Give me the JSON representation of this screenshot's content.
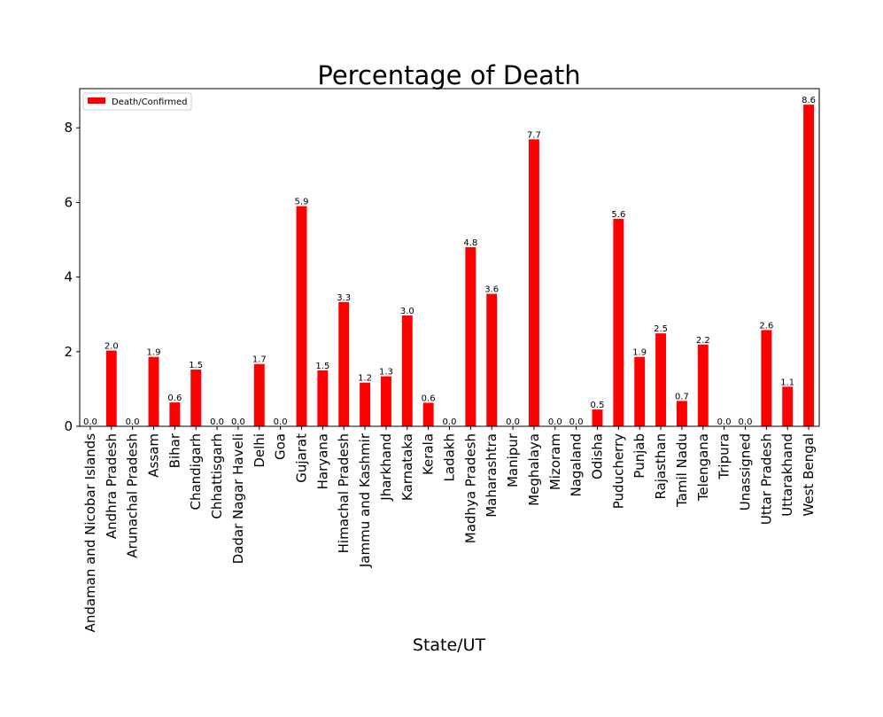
{
  "chart_data": {
    "type": "bar",
    "title": "Percentage of Death",
    "xlabel": "State/UT",
    "ylabel": "",
    "ylim": [
      0,
      9.05
    ],
    "yticks": [
      0,
      2,
      4,
      6,
      8
    ],
    "grid": false,
    "legend_position": "top-left",
    "bar_color": "#ff0000",
    "categories": [
      "Andaman and Nicobar Islands",
      "Andhra Pradesh",
      "Arunachal Pradesh",
      "Assam",
      "Bihar",
      "Chandigarh",
      "Chhattisgarh",
      "Dadar Nagar Haveli",
      "Delhi",
      "Goa",
      "Gujarat",
      "Haryana",
      "Himachal Pradesh",
      "Jammu and Kashmir",
      "Jharkhand",
      "Karnataka",
      "Kerala",
      "Ladakh",
      "Madhya Pradesh",
      "Maharashtra",
      "Manipur",
      "Meghalaya",
      "Mizoram",
      "Nagaland",
      "Odisha",
      "Puducherry",
      "Punjab",
      "Rajasthan",
      "Tamil Nadu",
      "Telengana",
      "Tripura",
      "Unassigned",
      "Uttar Pradesh",
      "Uttarakhand",
      "West Bengal"
    ],
    "series": [
      {
        "name": "Death/Confirmed",
        "values": [
          0.0,
          2.03,
          0.0,
          1.86,
          0.64,
          1.52,
          0.0,
          0.0,
          1.67,
          0.0,
          5.9,
          1.5,
          3.33,
          1.17,
          1.34,
          2.97,
          0.63,
          0.0,
          4.8,
          3.55,
          0.0,
          7.69,
          0.0,
          0.0,
          0.45,
          5.56,
          1.86,
          2.49,
          0.68,
          2.19,
          0.0,
          0.0,
          2.58,
          1.06,
          8.62
        ],
        "labels": [
          "0.0",
          "2.0",
          "0.0",
          "1.9",
          "0.6",
          "1.5",
          "0.0",
          "0.0",
          "1.7",
          "0.0",
          "5.9",
          "1.5",
          "3.3",
          "1.2",
          "1.3",
          "3.0",
          "0.6",
          "0.0",
          "4.8",
          "3.6",
          "0.0",
          "7.7",
          "0.0",
          "0.0",
          "0.5",
          "5.6",
          "1.9",
          "2.5",
          "0.7",
          "2.2",
          "0.0",
          "0.0",
          "2.6",
          "1.1",
          "8.6"
        ]
      }
    ]
  }
}
